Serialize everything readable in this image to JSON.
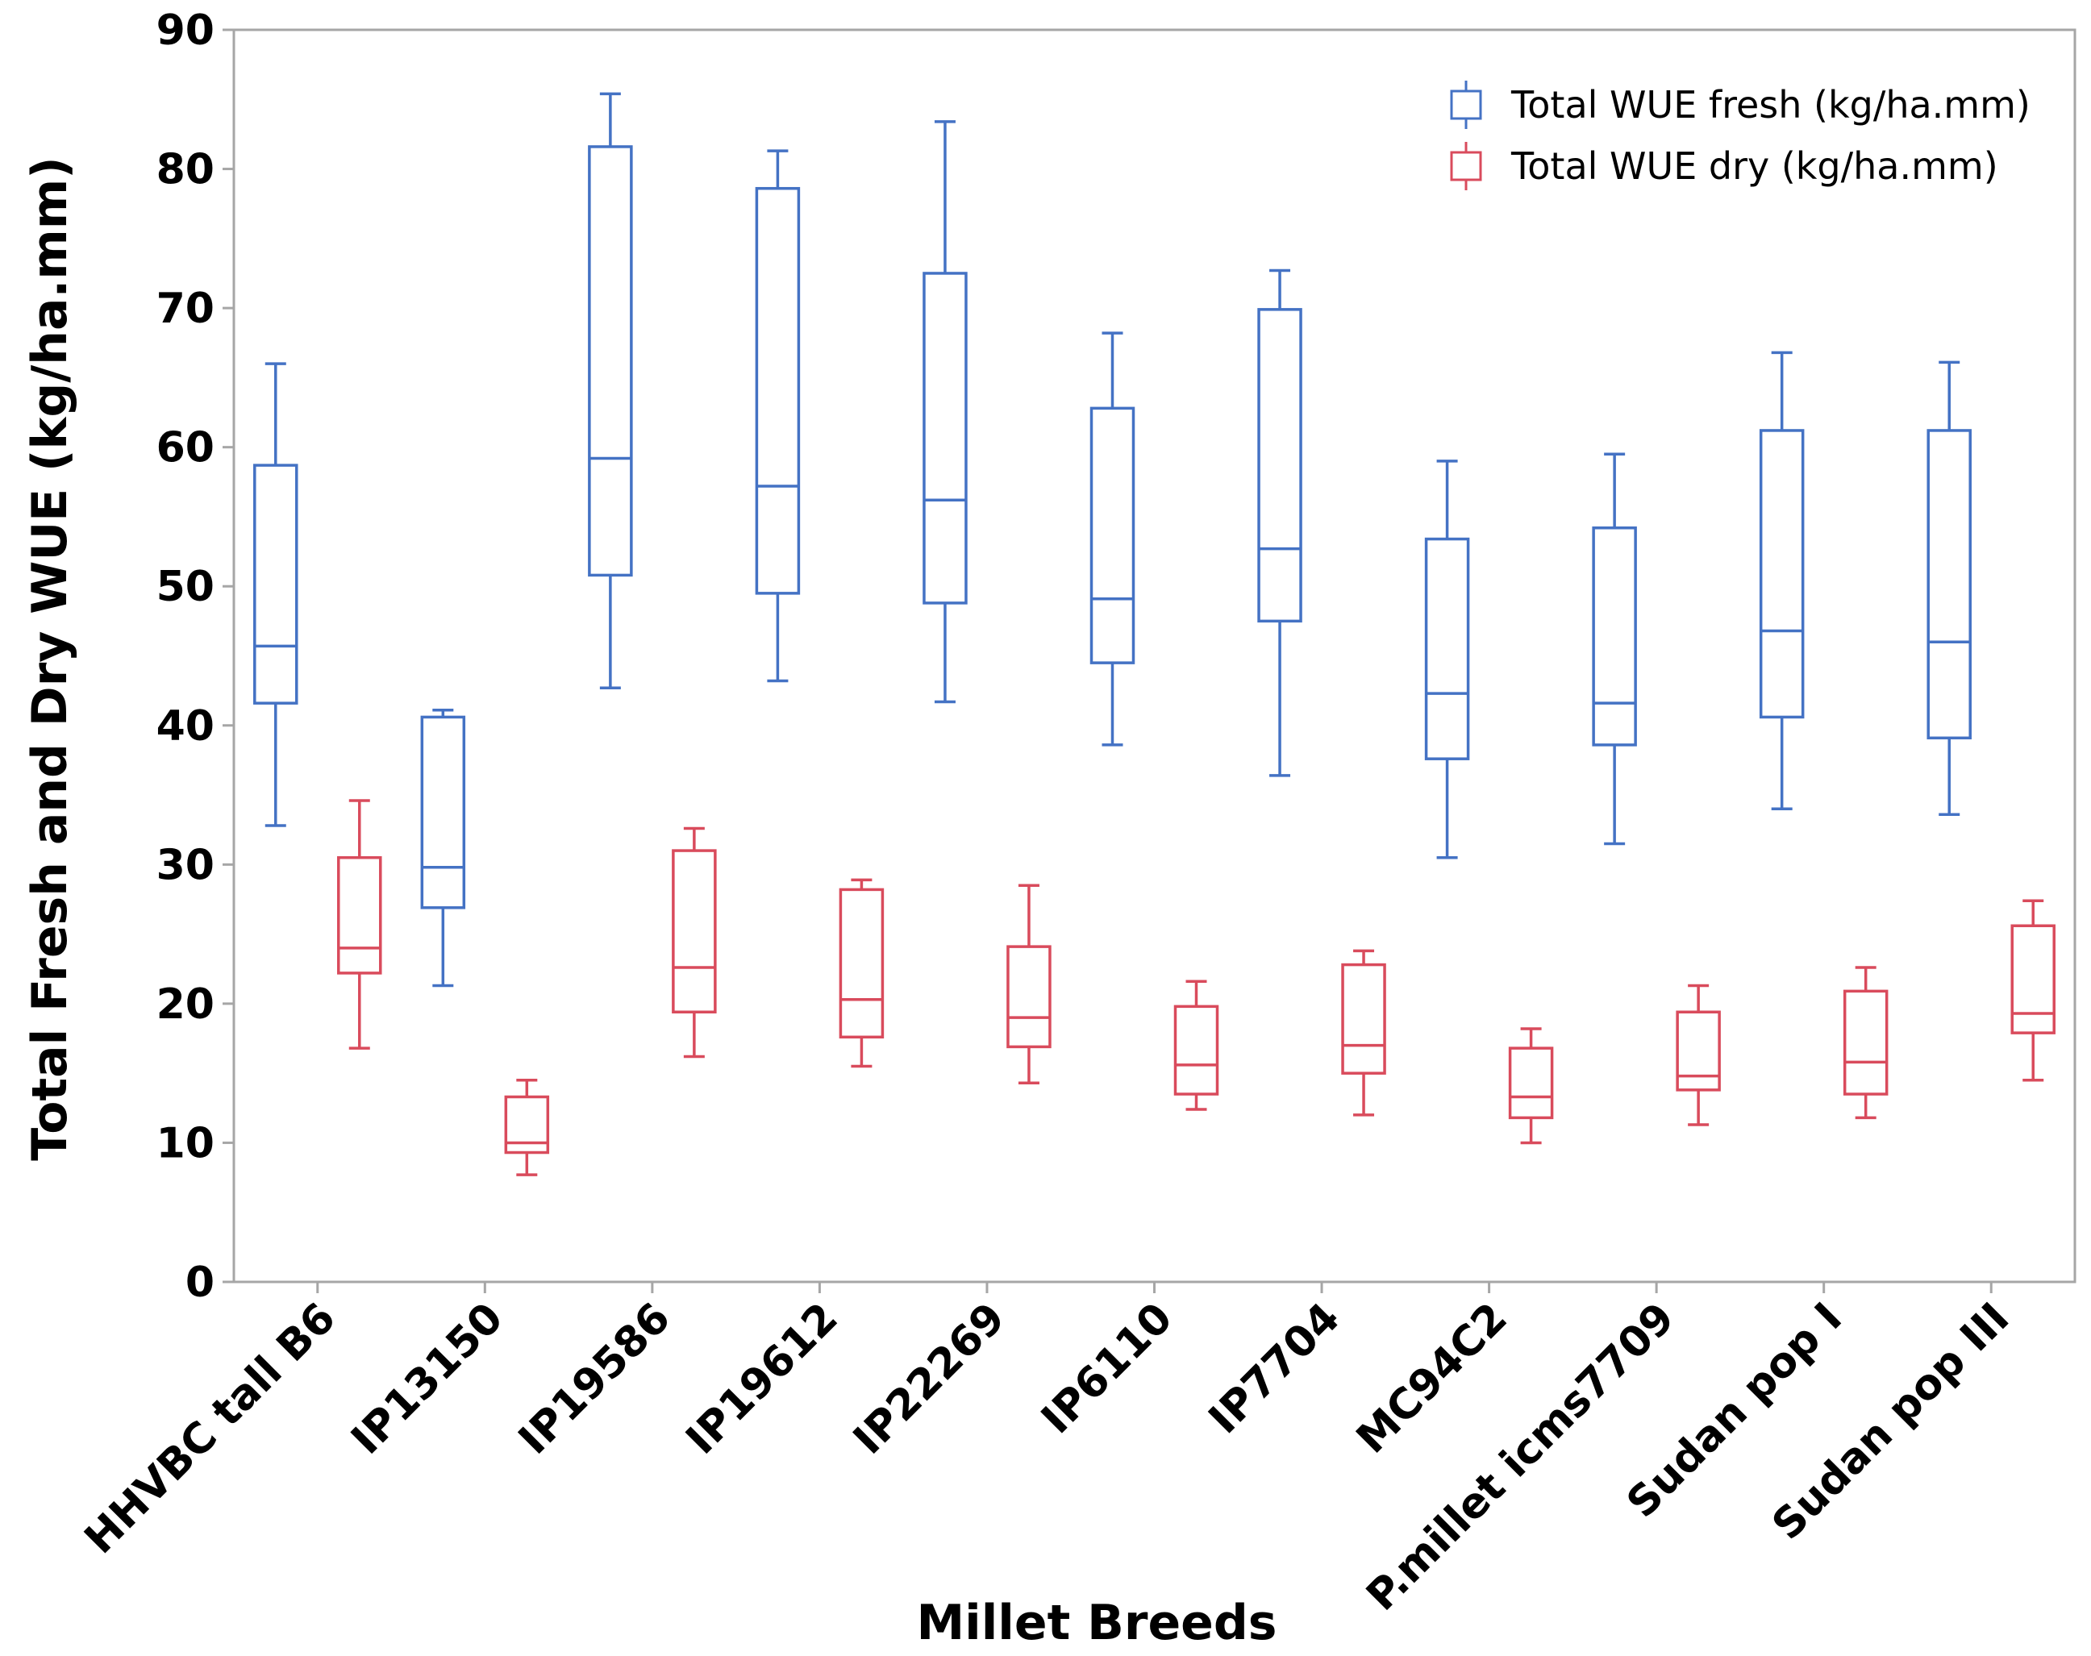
{
  "chart_data": {
    "type": "box",
    "title": "",
    "xlabel": "Millet Breeds",
    "ylabel": "Total Fresh and Dry WUE (kg/ha.mm)",
    "ylim": [
      0,
      90
    ],
    "yticks": [
      0,
      10,
      20,
      30,
      40,
      50,
      60,
      70,
      80,
      90
    ],
    "grid": false,
    "legend_position": "top-right",
    "categories": [
      "HHVBC tall B6",
      "IP13150",
      "IP19586",
      "IP19612",
      "IP22269",
      "IP6110",
      "IP7704",
      "MC94C2",
      "P.millet icms7709",
      "Sudan pop I",
      "Sudan pop III"
    ],
    "series": [
      {
        "name": "Total WUE fresh (kg/ha.mm)",
        "color": "#4472c4",
        "boxes": [
          {
            "min": 32.8,
            "q1": 41.6,
            "median": 45.7,
            "q3": 58.7,
            "max": 66.0
          },
          {
            "min": 21.3,
            "q1": 26.9,
            "median": 29.8,
            "q3": 40.6,
            "max": 41.1
          },
          {
            "min": 42.7,
            "q1": 50.8,
            "median": 59.2,
            "q3": 81.6,
            "max": 85.4
          },
          {
            "min": 43.2,
            "q1": 49.5,
            "median": 57.2,
            "q3": 78.6,
            "max": 81.3
          },
          {
            "min": 41.7,
            "q1": 48.8,
            "median": 56.2,
            "q3": 72.5,
            "max": 83.4
          },
          {
            "min": 38.6,
            "q1": 44.5,
            "median": 49.1,
            "q3": 62.8,
            "max": 68.2
          },
          {
            "min": 36.4,
            "q1": 47.5,
            "median": 52.7,
            "q3": 69.9,
            "max": 72.7
          },
          {
            "min": 30.5,
            "q1": 37.6,
            "median": 42.3,
            "q3": 53.4,
            "max": 59.0
          },
          {
            "min": 31.5,
            "q1": 38.6,
            "median": 41.6,
            "q3": 54.2,
            "max": 59.5
          },
          {
            "min": 34.0,
            "q1": 40.6,
            "median": 46.8,
            "q3": 61.2,
            "max": 66.8
          },
          {
            "min": 33.6,
            "q1": 39.1,
            "median": 46.0,
            "q3": 61.2,
            "max": 66.1
          }
        ]
      },
      {
        "name": "Total WUE dry (kg/ha.mm)",
        "color": "#d94b5c",
        "boxes": [
          {
            "min": 16.8,
            "q1": 22.2,
            "median": 24.0,
            "q3": 30.5,
            "max": 34.6
          },
          {
            "min": 7.7,
            "q1": 9.3,
            "median": 10.0,
            "q3": 13.3,
            "max": 14.5
          },
          {
            "min": 16.2,
            "q1": 19.4,
            "median": 22.6,
            "q3": 31.0,
            "max": 32.6
          },
          {
            "min": 15.5,
            "q1": 17.6,
            "median": 20.3,
            "q3": 28.2,
            "max": 28.9
          },
          {
            "min": 14.3,
            "q1": 16.9,
            "median": 19.0,
            "q3": 24.1,
            "max": 28.5
          },
          {
            "min": 12.4,
            "q1": 13.5,
            "median": 15.6,
            "q3": 19.8,
            "max": 21.6
          },
          {
            "min": 12.0,
            "q1": 15.0,
            "median": 17.0,
            "q3": 22.8,
            "max": 23.8
          },
          {
            "min": 10.0,
            "q1": 11.8,
            "median": 13.3,
            "q3": 16.8,
            "max": 18.2
          },
          {
            "min": 11.3,
            "q1": 13.8,
            "median": 14.8,
            "q3": 19.4,
            "max": 21.3
          },
          {
            "min": 11.8,
            "q1": 13.5,
            "median": 15.8,
            "q3": 20.9,
            "max": 22.6
          },
          {
            "min": 14.5,
            "q1": 17.9,
            "median": 19.3,
            "q3": 25.6,
            "max": 27.4
          }
        ]
      }
    ]
  }
}
